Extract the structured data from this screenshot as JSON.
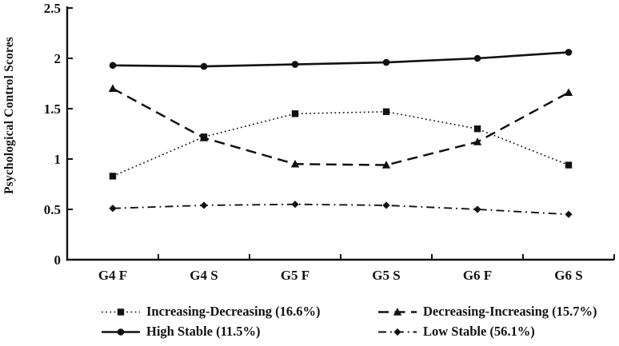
{
  "chart_data": {
    "type": "line",
    "title": "",
    "xlabel": "",
    "ylabel": "Psychological Control Scores",
    "categories": [
      "G4 F",
      "G4 S",
      "G5 F",
      "G5 S",
      "G6 F",
      "G6 S"
    ],
    "ylim": [
      0,
      2.5
    ],
    "yticks": [
      0,
      0.5,
      1,
      1.5,
      2,
      2.5
    ],
    "ytick_labels": [
      "0",
      "0.5",
      "1",
      "1.5",
      "2",
      "2.5"
    ],
    "grid": false,
    "legend_position": "bottom",
    "axis_color": "#111111",
    "background_color": "#ffffff",
    "series": [
      {
        "name": "Increasing-Decreasing (16.6%)",
        "values": [
          0.83,
          1.22,
          1.45,
          1.47,
          1.3,
          0.94
        ],
        "line_style": "dotted",
        "marker": "square",
        "color": "#111111"
      },
      {
        "name": "Decreasing-Increasing (15.7%)",
        "values": [
          1.7,
          1.21,
          0.95,
          0.94,
          1.17,
          1.66
        ],
        "line_style": "dashed",
        "marker": "triangle",
        "color": "#111111"
      },
      {
        "name": "High Stable (11.5%)",
        "values": [
          1.93,
          1.92,
          1.94,
          1.96,
          2.0,
          2.06
        ],
        "line_style": "solid",
        "marker": "circle",
        "color": "#111111"
      },
      {
        "name": "Low Stable (56.1%)",
        "values": [
          0.51,
          0.54,
          0.55,
          0.54,
          0.5,
          0.45
        ],
        "line_style": "dash-dot",
        "marker": "diamond",
        "color": "#111111"
      }
    ]
  }
}
